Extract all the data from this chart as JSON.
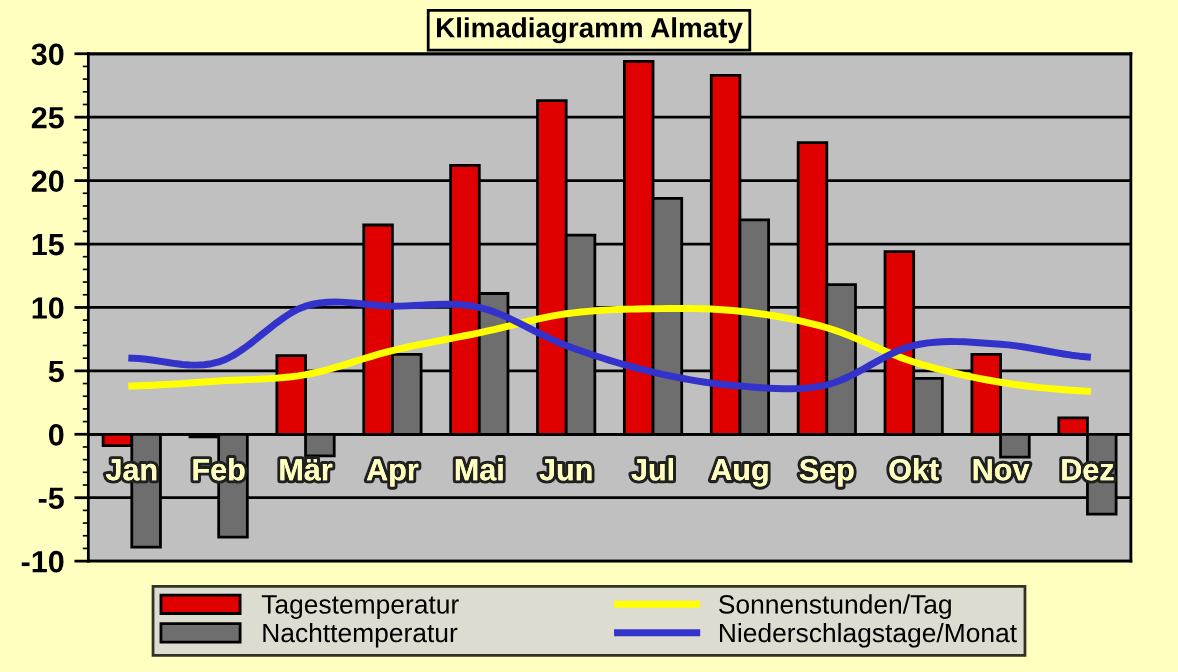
{
  "chart_data": {
    "type": "bar",
    "title": "Klimadiagramm Almaty",
    "categories": [
      "Jan",
      "Feb",
      "Mär",
      "Apr",
      "Mai",
      "Jun",
      "Jul",
      "Aug",
      "Sep",
      "Okt",
      "Nov",
      "Dez"
    ],
    "series": [
      {
        "name": "Tagestemperatur",
        "color": "#e00000",
        "values": [
          -0.9,
          -0.2,
          6.2,
          16.5,
          21.2,
          26.3,
          29.4,
          28.3,
          23.0,
          14.4,
          6.3,
          1.3
        ]
      },
      {
        "name": "Nachttemperatur",
        "color": "#6e6e6e",
        "values": [
          -8.9,
          -8.1,
          -1.7,
          6.3,
          11.1,
          15.7,
          18.6,
          16.9,
          11.8,
          4.4,
          -1.8,
          -6.3
        ]
      },
      {
        "name": "Sonnenstunden/Tag",
        "type": "line",
        "color": "#ffff00",
        "values": [
          3.8,
          4.2,
          4.7,
          6.6,
          8.0,
          9.5,
          9.9,
          9.7,
          8.4,
          5.7,
          4.1,
          3.4
        ]
      },
      {
        "name": "Niederschlagstage/Monat",
        "type": "line",
        "color": "#3333cc",
        "values": [
          6.0,
          5.7,
          10.1,
          10.1,
          10.0,
          7.0,
          4.9,
          3.8,
          3.9,
          7.0,
          7.1,
          6.1
        ]
      }
    ],
    "ylim": [
      -10,
      30
    ],
    "yticks": [
      -10,
      -5,
      0,
      5,
      10,
      15,
      20,
      25,
      30
    ],
    "grid": "y",
    "legend": "bottom",
    "marker": "none",
    "line_style": "solid"
  }
}
